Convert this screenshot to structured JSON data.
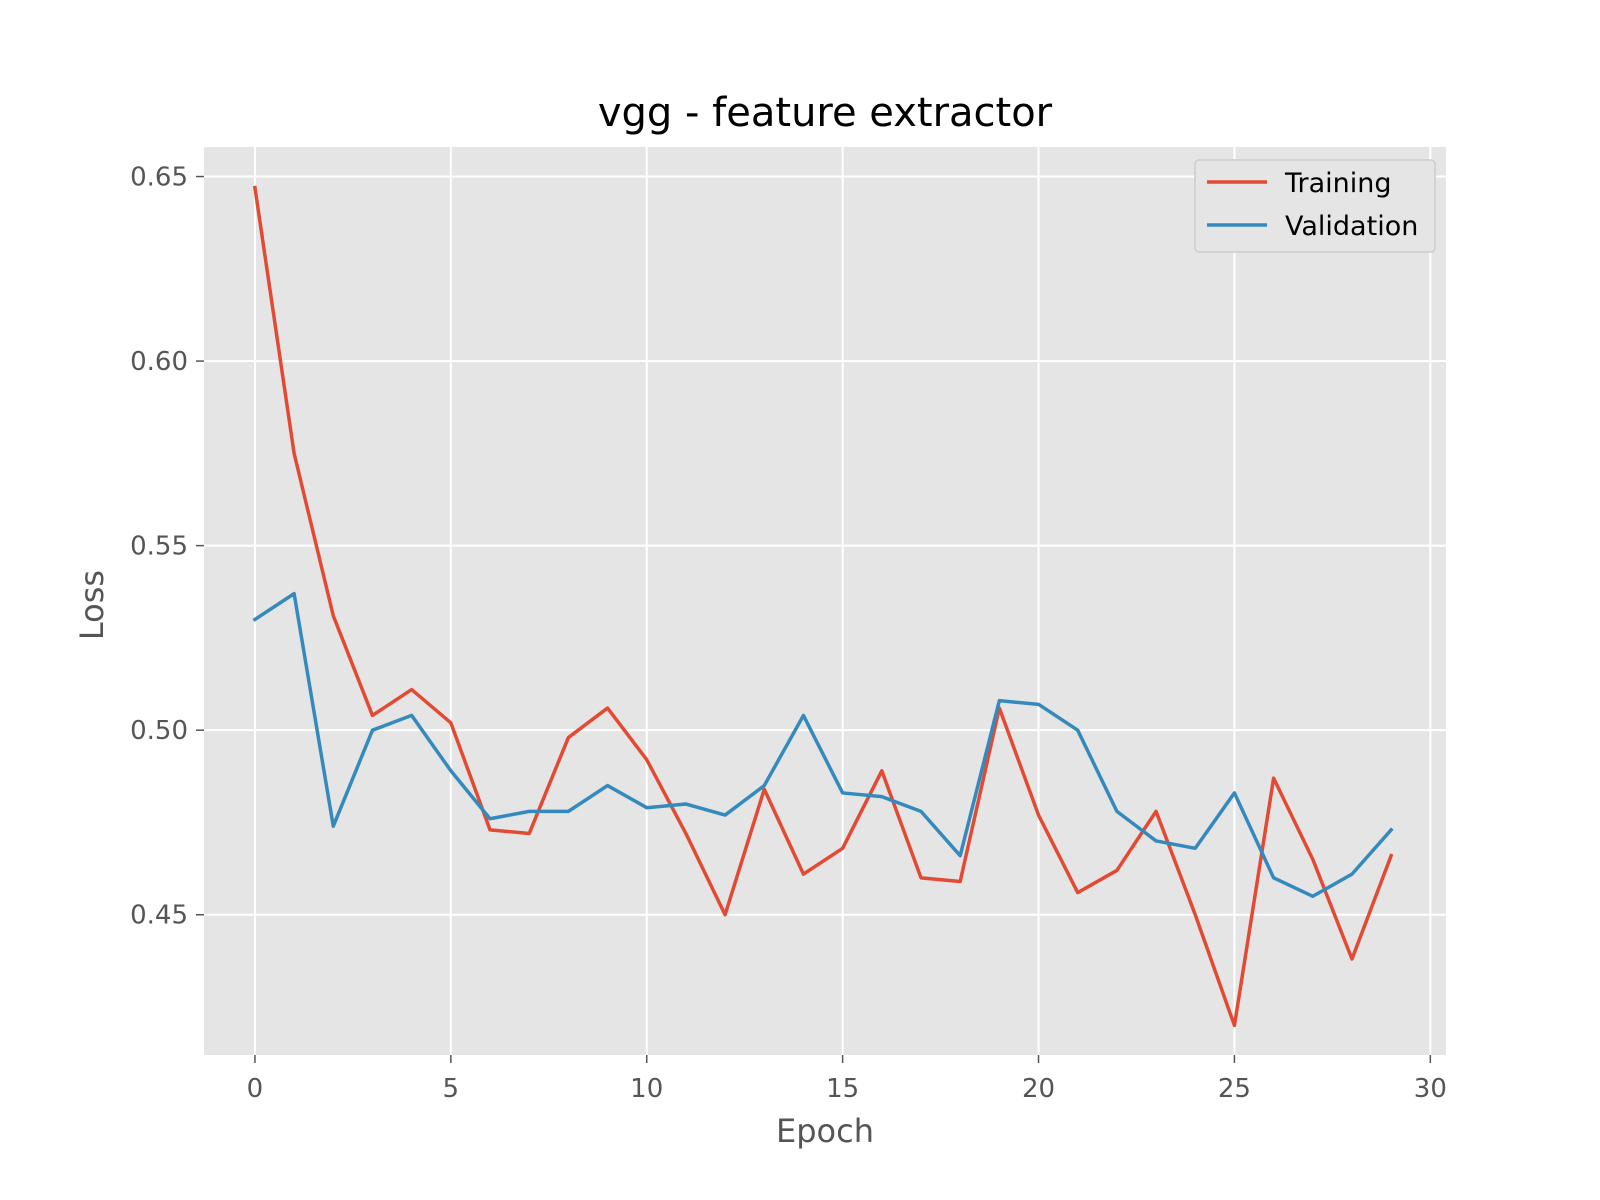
{
  "chart_data": {
    "type": "line",
    "title": "vgg - feature extractor",
    "xlabel": "Epoch",
    "ylabel": "Loss",
    "xlim": [
      -1.3,
      30.4
    ],
    "ylim": [
      0.412,
      0.658
    ],
    "xticks": [
      0,
      5,
      10,
      15,
      20,
      25,
      30
    ],
    "xtick_labels": [
      "0",
      "5",
      "10",
      "15",
      "20",
      "25",
      "30"
    ],
    "yticks": [
      0.45,
      0.5,
      0.55,
      0.6,
      0.65
    ],
    "ytick_labels": [
      "0.45",
      "0.50",
      "0.55",
      "0.60",
      "0.65"
    ],
    "grid": true,
    "legend_position": "top-right",
    "x": [
      0,
      1,
      2,
      3,
      4,
      5,
      6,
      7,
      8,
      9,
      10,
      11,
      12,
      13,
      14,
      15,
      16,
      17,
      18,
      19,
      20,
      21,
      22,
      23,
      24,
      25,
      26,
      27,
      28,
      29
    ],
    "series": [
      {
        "name": "Training",
        "color": "#E24A33",
        "values": [
          0.647,
          0.575,
          0.531,
          0.504,
          0.511,
          0.502,
          0.473,
          0.472,
          0.498,
          0.506,
          0.492,
          0.472,
          0.45,
          0.484,
          0.461,
          0.468,
          0.489,
          0.46,
          0.459,
          0.506,
          0.477,
          0.456,
          0.462,
          0.478,
          0.45,
          0.42,
          0.487,
          0.465,
          0.438,
          0.466
        ]
      },
      {
        "name": "Validation",
        "color": "#348ABD",
        "values": [
          0.53,
          0.537,
          0.474,
          0.5,
          0.504,
          0.489,
          0.476,
          0.478,
          0.478,
          0.485,
          0.479,
          0.48,
          0.477,
          0.485,
          0.504,
          0.483,
          0.482,
          0.478,
          0.466,
          0.508,
          0.507,
          0.5,
          0.478,
          0.47,
          0.468,
          0.483,
          0.46,
          0.455,
          0.461,
          0.473
        ]
      }
    ]
  }
}
